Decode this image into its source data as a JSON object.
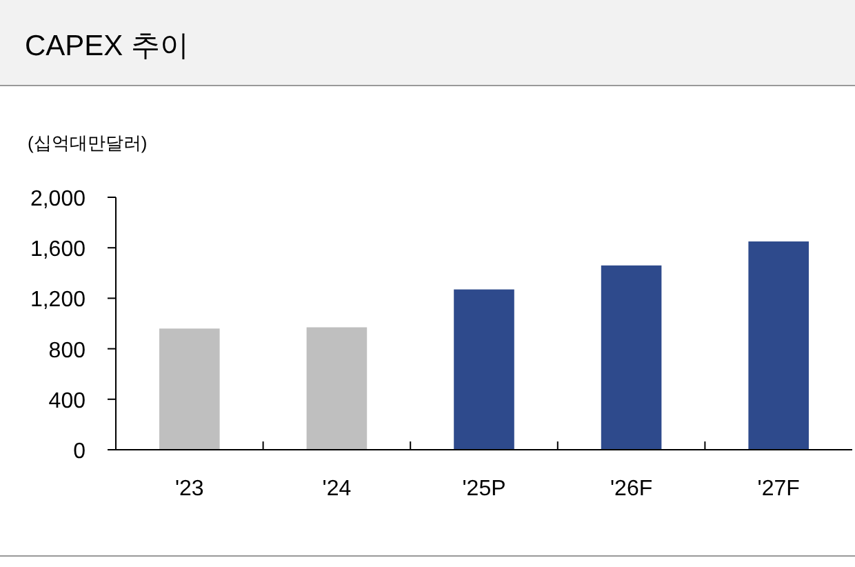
{
  "chart_data": {
    "type": "bar",
    "title": "CAPEX 추이",
    "ylabel": "(십억대만달러)",
    "categories": [
      "'23",
      "'24",
      "'25P",
      "'26F",
      "'27F"
    ],
    "values": [
      960,
      970,
      1270,
      1460,
      1650
    ],
    "colors": [
      "#bfbfbf",
      "#bfbfbf",
      "#2e4a8c",
      "#2e4a8c",
      "#2e4a8c"
    ],
    "ylim": [
      0,
      2000
    ],
    "yticks": [
      0,
      400,
      800,
      {
        "value": 1200,
        "label": "1,200"
      },
      {
        "value": 1600,
        "label": "1,600"
      },
      {
        "value": 2000,
        "label": "2,000"
      }
    ]
  }
}
